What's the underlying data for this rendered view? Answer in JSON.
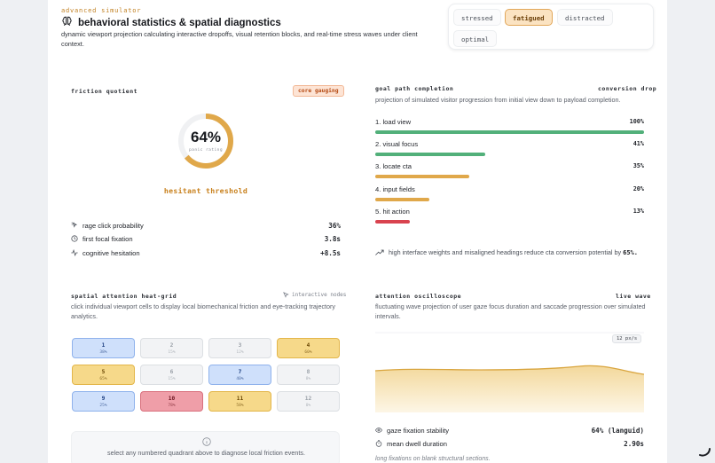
{
  "header": {
    "eyebrow": "advanced simulator",
    "title": "behavioral statistics & spatial diagnostics",
    "subtitle": "dynamic viewport projection calculating interactive dropoffs, visual retention blocks, and real-time stress waves under client context."
  },
  "mood": {
    "options": [
      "stressed",
      "fatigued",
      "distracted",
      "optimal"
    ],
    "selected": "fatigued"
  },
  "friction": {
    "label": "friction quotient",
    "badge": "core gauging",
    "value": "64%",
    "value_fraction": 0.64,
    "ring_caption": "panic rating",
    "threshold": "hesitant threshold",
    "metrics": [
      {
        "icon": "cursor-click-icon",
        "label": "rage click probability",
        "value": "36%"
      },
      {
        "icon": "clock-icon",
        "label": "first focal fixation",
        "value": "3.8s"
      },
      {
        "icon": "pulse-icon",
        "label": "cognitive hesitation",
        "value": "+8.5s"
      }
    ]
  },
  "goal_path": {
    "label": "goal path completion",
    "badge": "conversion drop",
    "description": "projection of simulated visitor progression from initial view down to payload completion.",
    "steps": [
      {
        "label": "1. load view",
        "value": "100%",
        "fraction": 1.0,
        "color": "#52b07a"
      },
      {
        "label": "2. visual focus",
        "value": "41%",
        "fraction": 0.41,
        "color": "#52b07a"
      },
      {
        "label": "3. locate cta",
        "value": "35%",
        "fraction": 0.35,
        "color": "#e0a84a"
      },
      {
        "label": "4. input fields",
        "value": "20%",
        "fraction": 0.2,
        "color": "#e0a84a"
      },
      {
        "label": "5. hit action",
        "value": "13%",
        "fraction": 0.13,
        "color": "#d9434f"
      }
    ],
    "note": "high interface weights and misaligned headings reduce cta conversion potential by",
    "note_value": "65%."
  },
  "heat_grid": {
    "label": "spatial attention heat-grid",
    "tag": "interactive nodes",
    "description": "click individual viewport cells to display local biomechanical friction and eye-tracking trajectory analytics.",
    "cells": [
      {
        "n": "1",
        "p": "38%",
        "tone": "blue"
      },
      {
        "n": "2",
        "p": "15%",
        "tone": "gray"
      },
      {
        "n": "3",
        "p": "12%",
        "tone": "gray"
      },
      {
        "n": "4",
        "p": "60%",
        "tone": "yellow"
      },
      {
        "n": "5",
        "p": "65%",
        "tone": "yellow"
      },
      {
        "n": "6",
        "p": "15%",
        "tone": "gray"
      },
      {
        "n": "7",
        "p": "40%",
        "tone": "blue"
      },
      {
        "n": "8",
        "p": "8%",
        "tone": "gray"
      },
      {
        "n": "9",
        "p": "25%",
        "tone": "blue"
      },
      {
        "n": "10",
        "p": "78%",
        "tone": "red"
      },
      {
        "n": "11",
        "p": "58%",
        "tone": "yellow"
      },
      {
        "n": "12",
        "p": "0%",
        "tone": "gray"
      }
    ],
    "hint": "select any numbered quadrant above to diagnose local friction events."
  },
  "oscilloscope": {
    "label": "attention oscilloscope",
    "badge": "live wave",
    "description": "fluctuating wave projection of user gaze focus duration and saccade progression over simulated intervals.",
    "rate": "12 px/s",
    "metrics": [
      {
        "icon": "eye-icon",
        "label": "gaze fixation stability",
        "value": "64% (languid)"
      },
      {
        "icon": "timer-icon",
        "label": "mean dwell duration",
        "value": "2.90s"
      }
    ],
    "footnote": "long fixations on blank structural sections."
  },
  "colors": {
    "accent": "#e0a84a",
    "success": "#52b07a",
    "danger": "#d9434f"
  }
}
